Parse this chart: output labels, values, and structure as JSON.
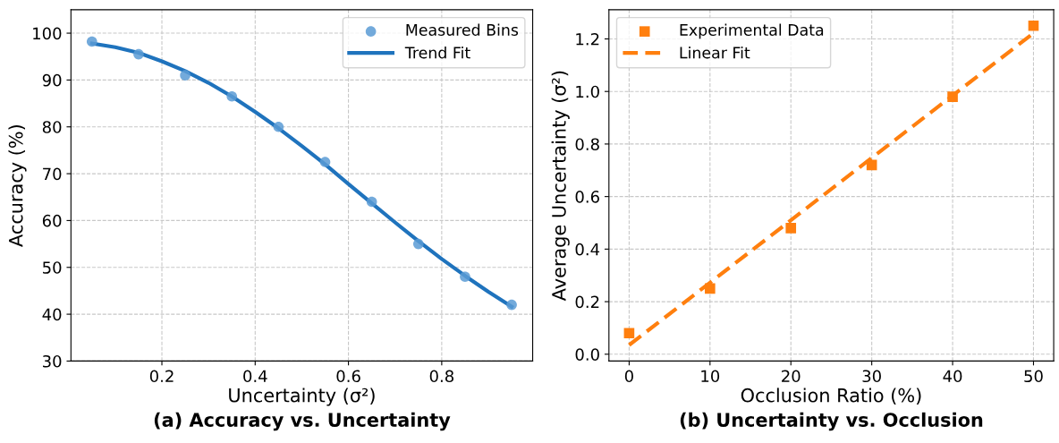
{
  "chart_data": [
    {
      "type": "scatter",
      "title": "(a) Accuracy vs. Uncertainty",
      "xlabel": "Uncertainty (σ²)",
      "ylabel": "Accuracy (%)",
      "xlim": [
        0.005,
        0.995
      ],
      "xticks": [
        {
          "value": 0.2,
          "label": "0.2"
        },
        {
          "value": 0.4,
          "label": "0.4"
        },
        {
          "value": 0.6,
          "label": "0.6"
        },
        {
          "value": 0.8,
          "label": "0.8"
        }
      ],
      "ylim": [
        30,
        105
      ],
      "yticks": [
        30,
        40,
        50,
        60,
        70,
        80,
        90,
        100
      ],
      "grid": true,
      "legend": "top right",
      "series": [
        {
          "name": "Measured Bins",
          "marker": "circle",
          "color": "#5b9bd5",
          "x": [
            0.05,
            0.15,
            0.25,
            0.35,
            0.45,
            0.55,
            0.65,
            0.75,
            0.85,
            0.95
          ],
          "values": [
            98.2,
            95.5,
            91,
            86.5,
            80,
            72.5,
            64,
            55,
            48,
            42
          ]
        },
        {
          "name": "Trend Fit",
          "type": "line",
          "line_style": "solid",
          "color": "#1f73bd",
          "x": [
            0.05,
            0.1,
            0.15,
            0.2,
            0.25,
            0.3,
            0.35,
            0.4,
            0.45,
            0.5,
            0.55,
            0.6,
            0.65,
            0.7,
            0.75,
            0.8,
            0.85,
            0.9,
            0.95
          ],
          "values": [
            97.8,
            97.0,
            95.8,
            94.0,
            91.9,
            89.4,
            86.5,
            83.2,
            79.7,
            75.9,
            72.0,
            67.8,
            63.7,
            59.6,
            55.6,
            51.8,
            48.2,
            44.8,
            41.6
          ]
        }
      ]
    },
    {
      "type": "scatter",
      "title": "(b) Uncertainty vs. Occlusion",
      "xlabel": "Occlusion Ratio (%)",
      "ylabel": "Average Uncertainty (σ²)",
      "xlim": [
        -2.5,
        52.5
      ],
      "xticks": [
        0,
        10,
        20,
        30,
        40,
        50
      ],
      "ylim": [
        -0.026,
        1.311
      ],
      "yticks": [
        {
          "value": 0,
          "label": "0.0"
        },
        {
          "value": 0.2,
          "label": "0.2"
        },
        {
          "value": 0.4,
          "label": "0.4"
        },
        {
          "value": 0.6,
          "label": "0.6"
        },
        {
          "value": 0.8,
          "label": "0.8"
        },
        {
          "value": 1.0,
          "label": "1.0"
        },
        {
          "value": 1.2,
          "label": "1.2"
        }
      ],
      "grid": true,
      "legend": "top left",
      "series": [
        {
          "name": "Experimental Data",
          "marker": "square",
          "color": "#ff7f0e",
          "x": [
            0,
            10,
            20,
            30,
            40,
            50
          ],
          "values": [
            0.08,
            0.25,
            0.48,
            0.72,
            0.98,
            1.25
          ]
        },
        {
          "name": "Linear Fit",
          "type": "line",
          "line_style": "dashed",
          "color": "#ff7f0e",
          "x": [
            0,
            50
          ],
          "values": [
            0.035,
            1.222
          ]
        }
      ]
    }
  ]
}
